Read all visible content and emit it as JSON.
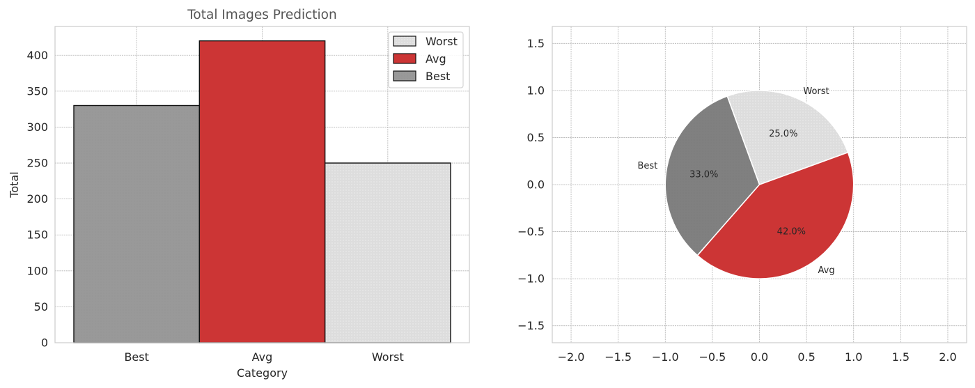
{
  "chart_data": [
    {
      "type": "bar",
      "title": "Total Images Prediction",
      "xlabel": "Category",
      "ylabel": "Total",
      "categories": [
        "Best",
        "Avg",
        "Worst"
      ],
      "values": [
        330,
        420,
        250
      ],
      "colors": [
        "#999999",
        "#cc3535",
        "#dddddd"
      ],
      "ylim": [
        0,
        440
      ],
      "yticks": [
        0,
        50,
        100,
        150,
        200,
        250,
        300,
        350,
        400
      ],
      "grid": true,
      "legend": {
        "placement": "top-right",
        "entries": [
          "Worst",
          "Avg",
          "Best"
        ]
      }
    },
    {
      "type": "pie",
      "labels": [
        "Worst",
        "Best",
        "Avg"
      ],
      "values": [
        25.0,
        33.0,
        42.0
      ],
      "pct_labels": [
        "25.0%",
        "33.0%",
        "42.0%"
      ],
      "colors": [
        "#dddddd",
        "#808080",
        "#cc3535"
      ],
      "start_angle_deg": 20,
      "xlim": [
        -2.2,
        2.2
      ],
      "ylim": [
        -1.68,
        1.68
      ],
      "xticks": [
        -2.0,
        -1.5,
        -1.0,
        -0.5,
        0.0,
        0.5,
        1.0,
        1.5,
        2.0
      ],
      "yticks": [
        -1.5,
        -1.0,
        -0.5,
        0.0,
        0.5,
        1.0,
        1.5
      ],
      "xtick_labels": [
        "−2.0",
        "−1.5",
        "−1.0",
        "−0.5",
        "0.0",
        "0.5",
        "1.0",
        "1.5",
        "2.0"
      ],
      "ytick_labels": [
        "−1.5",
        "−1.0",
        "−0.5",
        "0.0",
        "0.5",
        "1.0",
        "1.5"
      ],
      "grid": true
    }
  ]
}
